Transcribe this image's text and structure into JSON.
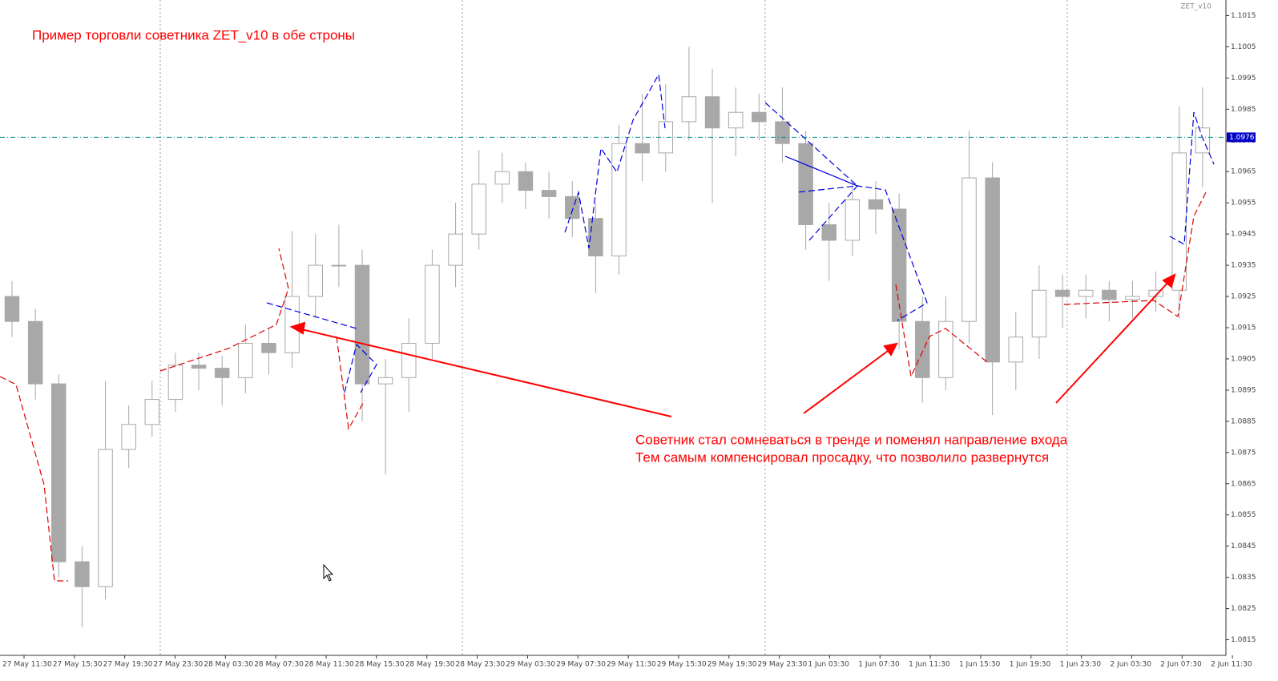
{
  "chart_data": {
    "type": "candlestick",
    "title": "Пример торговли советника ZET_v10 в обе строны",
    "indicator_label": "ZET_v10",
    "annotation": [
      "Советник стал сомневаться в тренде и поменял направление входа",
      "Тем самым компенсировал просадку, что позволило развернутся"
    ],
    "categories": [
      "27 May 11:30",
      "27 May 15:30",
      "27 May 19:30",
      "27 May 23:30",
      "28 May 03:30",
      "28 May 07:30",
      "28 May 11:30",
      "28 May 15:30",
      "28 May 19:30",
      "28 May 23:30",
      "29 May 03:30",
      "29 May 07:30",
      "29 May 11:30",
      "29 May 15:30",
      "29 May 19:30",
      "29 May 23:30",
      "1 Jun 03:30",
      "1 Jun 07:30",
      "1 Jun 11:30",
      "1 Jun 15:30",
      "1 Jun 19:30",
      "1 Jun 23:30",
      "2 Jun 03:30",
      "2 Jun 07:30",
      "2 Jun 11:30"
    ],
    "color": "#a8a8a8",
    "open": [
      1.0925,
      1.0917,
      1.0897,
      1.084,
      1.0832,
      1.0876,
      1.0884,
      1.0892,
      1.0903,
      1.0902,
      1.0899,
      1.091,
      1.0907,
      1.0925,
      1.0935,
      1.0935,
      1.0897,
      1.0899,
      1.091,
      1.0935,
      1.0945,
      1.0961,
      1.0965,
      1.0959,
      1.0957,
      1.095,
      1.0938,
      1.0974,
      1.0971,
      1.0981,
      1.0989,
      1.0979,
      1.0984,
      1.0981,
      1.0974,
      1.0948,
      1.0943,
      1.0956,
      1.0953,
      1.0917,
      1.0899,
      1.0917,
      1.0963,
      1.0904,
      1.0912,
      1.0927,
      1.0925,
      1.0927,
      1.0924,
      1.0925,
      1.0927,
      1.0971
    ],
    "high": [
      1.093,
      1.0921,
      1.09,
      1.0845,
      1.0898,
      1.089,
      1.0898,
      1.0907,
      1.0907,
      1.0906,
      1.0916,
      1.0915,
      1.0946,
      1.0945,
      1.0948,
      1.094,
      1.0905,
      1.0918,
      1.094,
      1.0955,
      1.0972,
      1.0971,
      1.0968,
      1.0965,
      1.0962,
      1.0955,
      1.098,
      1.099,
      1.0993,
      1.1005,
      1.0998,
      1.0992,
      1.099,
      1.0992,
      1.0978,
      1.0955,
      1.0962,
      1.0962,
      1.0958,
      1.0925,
      1.0925,
      1.0978,
      1.0968,
      1.092,
      1.0935,
      1.0932,
      1.0932,
      1.093,
      1.093,
      1.0933,
      1.0986,
      1.0992
    ],
    "low": [
      1.0912,
      1.0892,
      1.0835,
      1.0819,
      1.0828,
      1.087,
      1.088,
      1.0888,
      1.0895,
      1.089,
      1.0894,
      1.09,
      1.0902,
      1.0918,
      1.0928,
      1.0885,
      1.0868,
      1.0888,
      1.0905,
      1.0928,
      1.094,
      1.0955,
      1.0953,
      1.095,
      1.0944,
      1.0926,
      1.0932,
      1.0962,
      1.0965,
      1.0975,
      1.0955,
      1.097,
      1.0975,
      1.0968,
      1.094,
      1.093,
      1.0938,
      1.0945,
      1.0908,
      1.0891,
      1.0895,
      1.091,
      1.0887,
      1.0895,
      1.0905,
      1.0915,
      1.0918,
      1.0917,
      1.0918,
      1.092,
      1.0918,
      1.096
    ],
    "close": [
      1.0917,
      1.0897,
      1.084,
      1.0832,
      1.0876,
      1.0884,
      1.0892,
      1.0903,
      1.0902,
      1.0899,
      1.091,
      1.0907,
      1.0925,
      1.0935,
      1.0935,
      1.0897,
      1.0899,
      1.091,
      1.0935,
      1.0945,
      1.0961,
      1.0965,
      1.0959,
      1.0957,
      1.095,
      1.0938,
      1.0974,
      1.0971,
      1.0981,
      1.0989,
      1.0979,
      1.0984,
      1.0981,
      1.0974,
      1.0948,
      1.0943,
      1.0956,
      1.0953,
      1.0917,
      1.0899,
      1.0917,
      1.0963,
      1.0904,
      1.0912,
      1.0927,
      1.0925,
      1.0927,
      1.0924,
      1.0925,
      1.0927,
      1.0971,
      1.0979
    ],
    "current_price": 1.0976,
    "current_price_color": "#0000c8",
    "ylim": [
      1.081,
      1.102
    ],
    "yticks": [
      1.1015,
      1.1005,
      1.0995,
      1.0985,
      1.0975,
      1.0965,
      1.0955,
      1.0945,
      1.0935,
      1.0925,
      1.0915,
      1.0905,
      1.0895,
      1.0885,
      1.0875,
      1.0865,
      1.0855,
      1.0845,
      1.0835,
      1.0825,
      1.0815
    ]
  }
}
